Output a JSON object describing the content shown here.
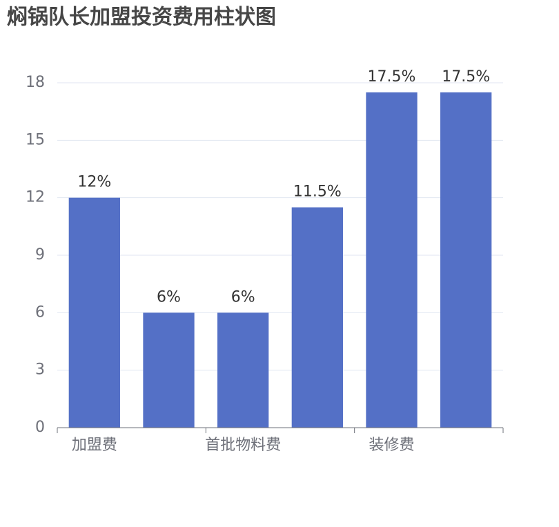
{
  "chart_data": {
    "type": "bar",
    "title": "焖锅队长加盟投资费用柱状图",
    "categories": [
      "加盟费",
      null,
      "首批物料费",
      null,
      "装修费",
      null
    ],
    "values": [
      12,
      6,
      6,
      11.5,
      17.5,
      17.5
    ],
    "value_labels": [
      "12%",
      "6%",
      "6%",
      "11.5%",
      "17.5%",
      "17.5%"
    ],
    "color": "#5470c6",
    "ylim": [
      0,
      18
    ],
    "yticks": [
      0,
      3,
      6,
      9,
      12,
      15,
      18
    ],
    "grid": true
  }
}
